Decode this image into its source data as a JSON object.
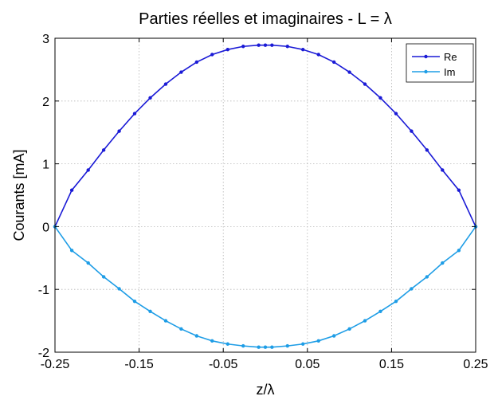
{
  "chart_data": {
    "type": "line",
    "title": "Parties réelles et imaginaires - L = λ",
    "xlabel": "z/λ",
    "ylabel": "Courants [mA]",
    "xlim": [
      -0.25,
      0.25
    ],
    "ylim": [
      -2,
      3
    ],
    "xticks": [
      -0.25,
      -0.15,
      -0.05,
      0.05,
      0.15,
      0.25
    ],
    "xtick_labels": [
      "-0.25",
      "-0.15",
      "-0.05",
      "0.05",
      "0.15",
      "0.25"
    ],
    "yticks": [
      -2,
      -1,
      0,
      1,
      2,
      3
    ],
    "ytick_labels": [
      "-2",
      "-1",
      "0",
      "1",
      "2",
      "3"
    ],
    "grid": true,
    "legend_position": "top-right",
    "x": [
      -0.25,
      -0.23,
      -0.2105,
      -0.1921,
      -0.1737,
      -0.1553,
      -0.1368,
      -0.1184,
      -0.1,
      -0.0816,
      -0.0632,
      -0.0447,
      -0.0263,
      -0.0079,
      0.0,
      0.0079,
      0.0263,
      0.0447,
      0.0632,
      0.0816,
      0.1,
      0.1184,
      0.1368,
      0.1553,
      0.1737,
      0.1921,
      0.2105,
      0.23,
      0.25
    ],
    "series": [
      {
        "name": "Re",
        "color": "#1a1ad6",
        "values": [
          0.0,
          0.58,
          0.9,
          1.22,
          1.52,
          1.8,
          2.05,
          2.27,
          2.46,
          2.62,
          2.74,
          2.82,
          2.87,
          2.89,
          2.89,
          2.89,
          2.87,
          2.82,
          2.74,
          2.62,
          2.46,
          2.27,
          2.05,
          1.8,
          1.52,
          1.22,
          0.9,
          0.58,
          0.0
        ]
      },
      {
        "name": "Im",
        "color": "#1e9de6",
        "values": [
          0.0,
          -0.38,
          -0.58,
          -0.8,
          -0.99,
          -1.19,
          -1.35,
          -1.5,
          -1.63,
          -1.74,
          -1.82,
          -1.87,
          -1.9,
          -1.92,
          -1.92,
          -1.92,
          -1.9,
          -1.87,
          -1.82,
          -1.74,
          -1.63,
          -1.5,
          -1.35,
          -1.19,
          -0.99,
          -0.8,
          -0.58,
          -0.38,
          0.0
        ]
      }
    ]
  }
}
